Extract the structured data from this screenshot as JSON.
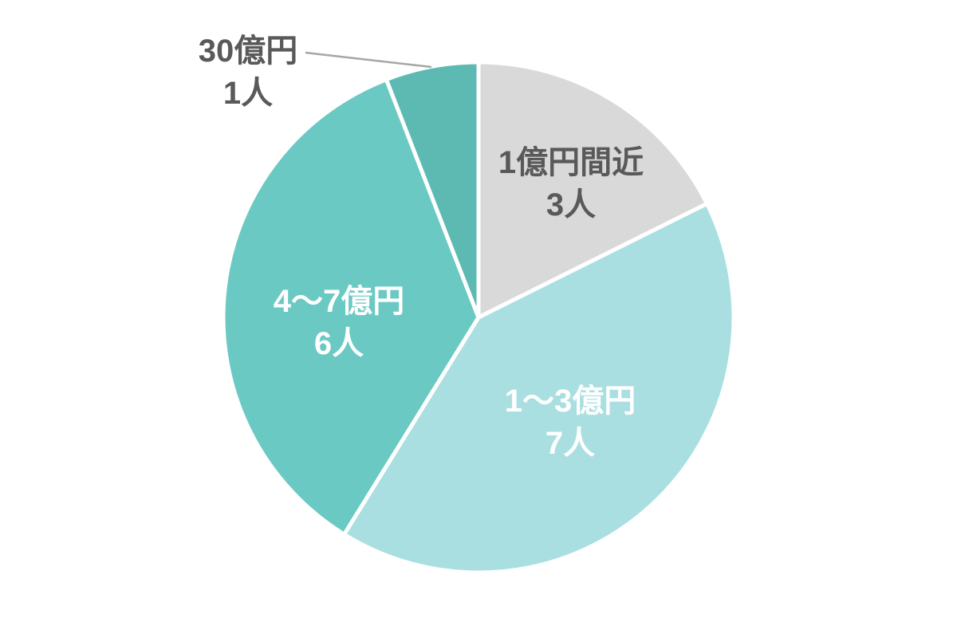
{
  "chart_data": {
    "type": "pie",
    "title": "",
    "unit": "人",
    "start_angle_deg": 0,
    "direction": "clockwise",
    "legend": "none",
    "slices": [
      {
        "label": "1億円間近",
        "count_label": "3人",
        "value": 3,
        "color": "#d9d9d9",
        "label_color": "#595959",
        "label_placement": "inside"
      },
      {
        "label": "1〜3億円",
        "count_label": "7人",
        "value": 7,
        "color": "#aadfe1",
        "label_color": "#ffffff",
        "label_placement": "inside"
      },
      {
        "label": "4〜7億円",
        "count_label": "6人",
        "value": 6,
        "color": "#6bc9c3",
        "label_color": "#ffffff",
        "label_placement": "inside"
      },
      {
        "label": "30億円",
        "count_label": "1人",
        "value": 1,
        "color": "#5dbab2",
        "label_color": "#595959",
        "label_placement": "outside",
        "leader_line": true
      }
    ],
    "divider_color": "#ffffff",
    "leader_line_color": "#a6a6a6",
    "background_color": "#ffffff"
  }
}
